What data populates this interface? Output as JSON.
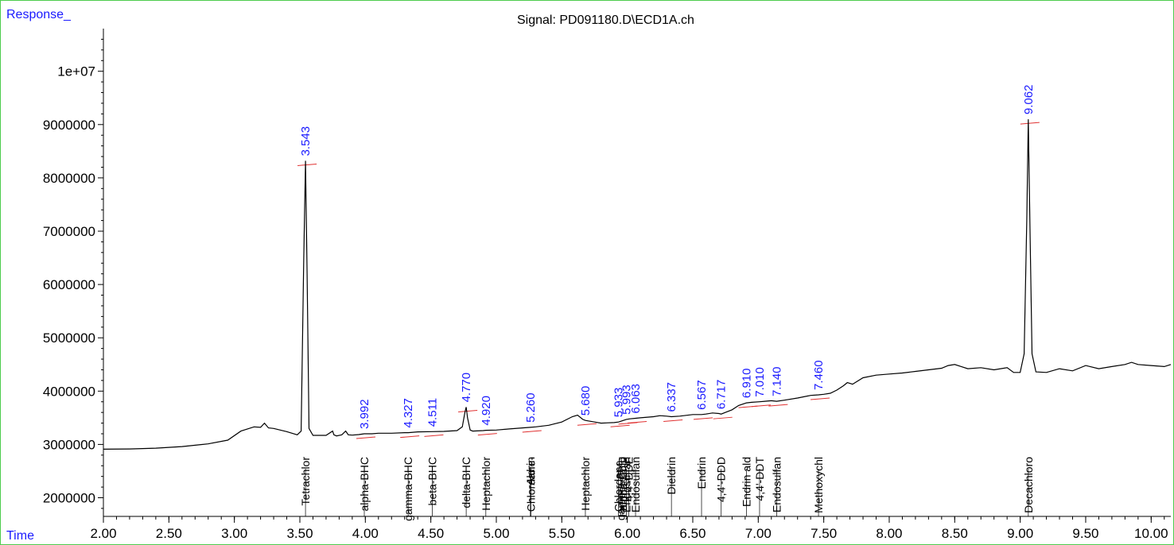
{
  "header": {
    "response_label": "Response_",
    "time_label": "Time",
    "signal_title": "Signal: PD091180.D\\ECD1A.ch"
  },
  "chart_data": {
    "type": "line",
    "title": "Signal: PD091180.D\\ECD1A.ch",
    "xlabel": "Time",
    "ylabel": "Response_",
    "xlim": [
      2.0,
      10.15
    ],
    "ylim": [
      1650000,
      10800000
    ],
    "x_ticks": [
      2.0,
      2.5,
      3.0,
      3.5,
      4.0,
      4.5,
      5.0,
      5.5,
      6.0,
      6.5,
      7.0,
      7.5,
      8.0,
      8.5,
      9.0,
      9.5,
      10.0
    ],
    "x_tick_labels": [
      "2.00",
      "2.50",
      "3.00",
      "3.50",
      "4.00",
      "4.50",
      "5.00",
      "5.50",
      "6.00",
      "6.50",
      "7.00",
      "7.50",
      "8.00",
      "8.50",
      "9.00",
      "9.50",
      "10.00"
    ],
    "y_ticks": [
      2000000,
      3000000,
      4000000,
      5000000,
      6000000,
      7000000,
      8000000,
      9000000,
      10000000
    ],
    "y_tick_labels": [
      "2000000",
      "3000000",
      "4000000",
      "5000000",
      "6000000",
      "7000000",
      "8000000",
      "9000000",
      "1e+07"
    ],
    "series": [
      {
        "color": "#000000",
        "x": [
          2.0,
          2.2,
          2.4,
          2.6,
          2.8,
          2.95,
          3.05,
          3.15,
          3.2,
          3.23,
          3.26,
          3.3,
          3.4,
          3.48,
          3.51,
          3.53,
          3.543,
          3.555,
          3.57,
          3.6,
          3.7,
          3.75,
          3.76,
          3.78,
          3.82,
          3.85,
          3.87,
          3.9,
          3.95,
          3.992,
          4.05,
          4.1,
          4.2,
          4.3,
          4.327,
          4.4,
          4.511,
          4.6,
          4.7,
          4.74,
          4.76,
          4.77,
          4.78,
          4.8,
          4.82,
          4.9,
          4.92,
          5.0,
          5.1,
          5.2,
          5.26,
          5.3,
          5.4,
          5.5,
          5.58,
          5.62,
          5.66,
          5.68,
          5.75,
          5.8,
          5.9,
          5.933,
          5.97,
          5.993,
          6.02,
          6.063,
          6.1,
          6.2,
          6.25,
          6.3,
          6.337,
          6.4,
          6.5,
          6.567,
          6.6,
          6.65,
          6.7,
          6.717,
          6.75,
          6.8,
          6.85,
          6.91,
          6.95,
          7.01,
          7.05,
          7.1,
          7.14,
          7.2,
          7.3,
          7.4,
          7.46,
          7.5,
          7.55,
          7.6,
          7.65,
          7.68,
          7.72,
          7.8,
          7.9,
          8.0,
          8.1,
          8.2,
          8.3,
          8.4,
          8.45,
          8.5,
          8.55,
          8.6,
          8.7,
          8.8,
          8.9,
          8.95,
          9.0,
          9.03,
          9.05,
          9.062,
          9.075,
          9.09,
          9.12,
          9.2,
          9.3,
          9.4,
          9.5,
          9.6,
          9.7,
          9.8,
          9.85,
          9.9,
          10.0,
          10.1,
          10.15
        ],
        "y": [
          2910000,
          2915000,
          2930000,
          2960000,
          3010000,
          3080000,
          3250000,
          3330000,
          3320000,
          3400000,
          3310000,
          3300000,
          3240000,
          3180000,
          3250000,
          6500000,
          8320000,
          6200000,
          3300000,
          3170000,
          3170000,
          3250000,
          3180000,
          3160000,
          3180000,
          3250000,
          3180000,
          3175000,
          3185000,
          3200000,
          3200000,
          3210000,
          3210000,
          3220000,
          3220000,
          3235000,
          3240000,
          3245000,
          3260000,
          3330000,
          3600000,
          3700000,
          3500000,
          3270000,
          3250000,
          3260000,
          3265000,
          3270000,
          3290000,
          3310000,
          3320000,
          3330000,
          3360000,
          3420000,
          3520000,
          3550000,
          3470000,
          3450000,
          3420000,
          3400000,
          3410000,
          3420000,
          3450000,
          3470000,
          3480000,
          3490000,
          3500000,
          3520000,
          3540000,
          3530000,
          3520000,
          3530000,
          3560000,
          3560000,
          3570000,
          3590000,
          3580000,
          3570000,
          3600000,
          3650000,
          3730000,
          3780000,
          3790000,
          3800000,
          3810000,
          3820000,
          3810000,
          3830000,
          3870000,
          3920000,
          3930000,
          3940000,
          3960000,
          4020000,
          4100000,
          4160000,
          4130000,
          4250000,
          4300000,
          4320000,
          4340000,
          4370000,
          4400000,
          4430000,
          4480000,
          4500000,
          4460000,
          4420000,
          4440000,
          4400000,
          4440000,
          4350000,
          4350000,
          4700000,
          7200000,
          9100000,
          7000000,
          4700000,
          4360000,
          4350000,
          4420000,
          4380000,
          4480000,
          4420000,
          4460000,
          4500000,
          4540000,
          4500000,
          4480000,
          4460000,
          4500000
        ]
      }
    ],
    "peaks": [
      {
        "rt": "3.543",
        "name": "Tetrachlor",
        "x": 3.543,
        "y": 8320000
      },
      {
        "rt": "3.992",
        "name": "alpha-BHC",
        "x": 3.992,
        "y": 3200000
      },
      {
        "rt": "4.327",
        "name": "gamma-BHC",
        "x": 4.327,
        "y": 3220000
      },
      {
        "rt": "4.511",
        "name": "beta-BHC",
        "x": 4.511,
        "y": 3240000
      },
      {
        "rt": "4.770",
        "name": "delta-BHC",
        "x": 4.77,
        "y": 3700000
      },
      {
        "rt": "4.920",
        "name": "Heptachlor",
        "x": 4.92,
        "y": 3265000
      },
      {
        "rt": "5.260",
        "name": "Aldrin",
        "x": 5.26,
        "y": 3320000
      },
      {
        "rt": "",
        "name": "Chlordane-",
        "x": 5.265,
        "y": 3320000
      },
      {
        "rt": "5.680",
        "name": "Heptachlor",
        "x": 5.68,
        "y": 3450000
      },
      {
        "rt": "5.933",
        "name": "Chlordane-",
        "x": 5.933,
        "y": 3420000
      },
      {
        "rt": "",
        "name": "gamma-Chlo",
        "x": 5.95,
        "y": 3430000
      },
      {
        "rt": "",
        "name": "alpha-Chlo",
        "x": 5.965,
        "y": 3440000
      },
      {
        "rt": "5.993",
        "name": "Endosulfan",
        "x": 5.993,
        "y": 3470000
      },
      {
        "rt": "",
        "name": "4,4'-DDE",
        "x": 6.01,
        "y": 3475000
      },
      {
        "rt": "6.063",
        "name": "Endosulfan",
        "x": 6.063,
        "y": 3490000
      },
      {
        "rt": "6.337",
        "name": "Dieldrin",
        "x": 6.337,
        "y": 3520000
      },
      {
        "rt": "6.567",
        "name": "Endrin",
        "x": 6.567,
        "y": 3560000
      },
      {
        "rt": "6.717",
        "name": "4,4'-DDD",
        "x": 6.717,
        "y": 3570000
      },
      {
        "rt": "6.910",
        "name": "Endrin ald",
        "x": 6.91,
        "y": 3780000
      },
      {
        "rt": "7.010",
        "name": "4,4'-DDT",
        "x": 7.01,
        "y": 3800000
      },
      {
        "rt": "7.140",
        "name": "Endosulfan",
        "x": 7.14,
        "y": 3810000
      },
      {
        "rt": "7.460",
        "name": "Methoxychl",
        "x": 7.46,
        "y": 3930000
      },
      {
        "rt": "9.062",
        "name": "Decachloro",
        "x": 9.062,
        "y": 9100000
      }
    ],
    "colors": {
      "trace": "#000000",
      "rt_label": "#1a1aff",
      "baseline": "#e03030",
      "frame": "#4dcc4d"
    },
    "grid": false,
    "legend": "none"
  }
}
